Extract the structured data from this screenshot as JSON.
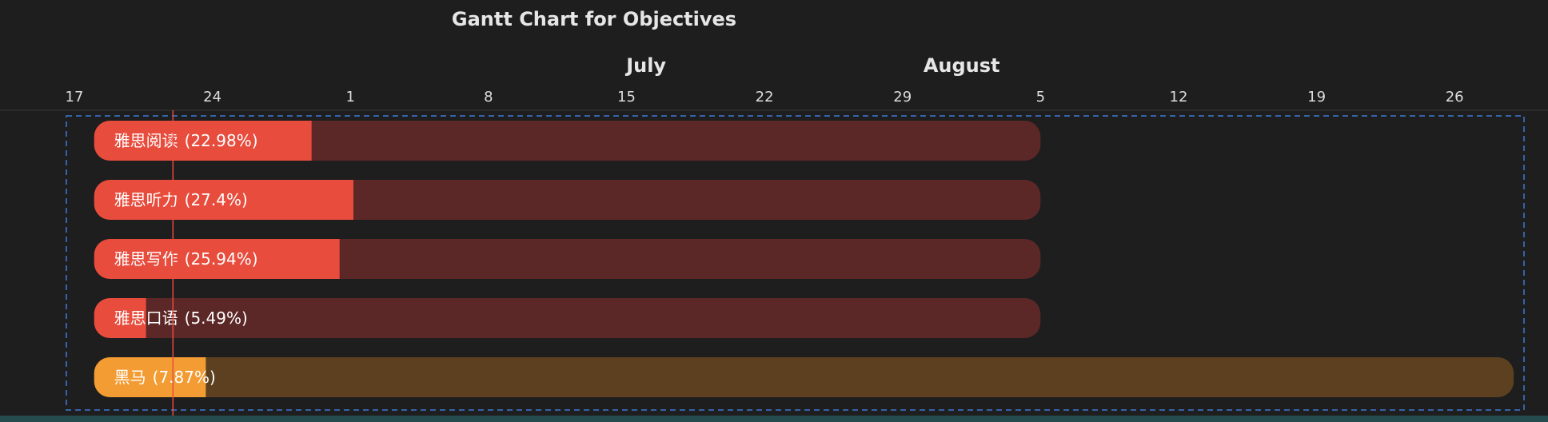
{
  "chart_data": {
    "type": "gantt",
    "title": "Gantt Chart for Objectives",
    "months": [
      {
        "label": "July",
        "date": "2025-07-16"
      },
      {
        "label": "August",
        "date": "2025-08-01"
      }
    ],
    "ticks": [
      {
        "label": "17",
        "date": "2025-06-17"
      },
      {
        "label": "24",
        "date": "2025-06-24"
      },
      {
        "label": "1",
        "date": "2025-07-01"
      },
      {
        "label": "8",
        "date": "2025-07-08"
      },
      {
        "label": "15",
        "date": "2025-07-15"
      },
      {
        "label": "22",
        "date": "2025-07-22"
      },
      {
        "label": "29",
        "date": "2025-07-29"
      },
      {
        "label": "5",
        "date": "2025-08-05"
      },
      {
        "label": "12",
        "date": "2025-08-12"
      },
      {
        "label": "19",
        "date": "2025-08-19"
      },
      {
        "label": "26",
        "date": "2025-08-26"
      }
    ],
    "today": "2025-06-22",
    "tasks": [
      {
        "name": "雅思阅读",
        "progress_label": "(22.98%)",
        "progress": 0.2298,
        "start": "2025-06-18",
        "end": "2025-08-05",
        "color": "#e84c3d",
        "track_color": "#5c2827"
      },
      {
        "name": "雅思听力",
        "progress_label": "(27.4%)",
        "progress": 0.274,
        "start": "2025-06-18",
        "end": "2025-08-05",
        "color": "#e84c3d",
        "track_color": "#5c2827"
      },
      {
        "name": "雅思写作",
        "progress_label": "(25.94%)",
        "progress": 0.2594,
        "start": "2025-06-18",
        "end": "2025-08-05",
        "color": "#e84c3d",
        "track_color": "#5c2827"
      },
      {
        "name": "雅思口语",
        "progress_label": "(5.49%)",
        "progress": 0.0549,
        "start": "2025-06-18",
        "end": "2025-08-05",
        "color": "#e84c3d",
        "track_color": "#5c2827"
      },
      {
        "name": "黑马",
        "progress_label": "(7.87%)",
        "progress": 0.0787,
        "start": "2025-06-18",
        "end": "2025-08-29",
        "color": "#f39c33",
        "track_color": "#5c4020"
      }
    ],
    "colors": {
      "background": "#1e1e1e",
      "today_line": "#e84c3d",
      "selection_border": "#3f7ad6",
      "axis_line": "#3a3a3a"
    }
  }
}
